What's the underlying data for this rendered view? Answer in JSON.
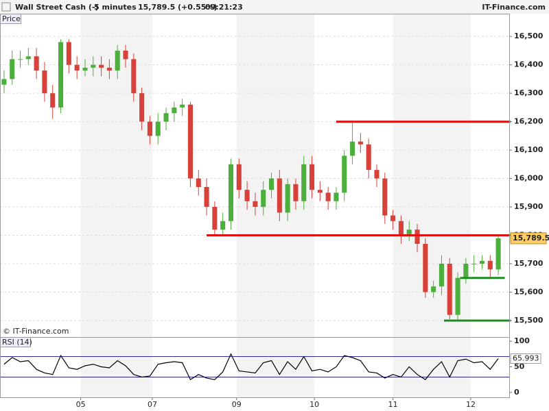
{
  "header": {
    "instrument": "Wall Street Cash (-)",
    "timeframe": "5 minutes",
    "price": "15,789.5",
    "change": "(+0.55%)",
    "time": "09:21:23",
    "brand": "IT-Finance.com"
  },
  "chart_data": [
    {
      "type": "candlestick",
      "panel_label": "Price",
      "watermark": "© IT-Finance.com",
      "up_color": "#4cae3c",
      "down_color": "#d8403a",
      "open": [
        16330,
        16350,
        16420,
        16420,
        16430,
        16380,
        16300,
        16250,
        16480,
        16400,
        16380,
        16390,
        16400,
        16390,
        16380,
        16450,
        16420,
        16300,
        16200,
        16150,
        16200,
        16230,
        16250,
        16260,
        16000,
        15970,
        15900,
        15820,
        15850,
        16050,
        15960,
        15920,
        15900,
        15960,
        16000,
        15880,
        15980,
        15920,
        16050,
        15960,
        15950,
        15920,
        15950,
        16080,
        16130,
        16120,
        16030,
        16000,
        15870,
        15850,
        15800,
        15820,
        15770,
        15600,
        15620,
        15700,
        15520,
        15650,
        15700,
        15700,
        15710,
        15680
      ],
      "high": [
        16380,
        16450,
        16450,
        16460,
        16460,
        16410,
        16330,
        16490,
        16490,
        16430,
        16420,
        16430,
        16430,
        16420,
        16470,
        16470,
        16440,
        16320,
        16220,
        16230,
        16250,
        16270,
        16280,
        16270,
        16030,
        16000,
        15920,
        15880,
        16070,
        16070,
        15990,
        15950,
        15990,
        16020,
        16030,
        16000,
        16000,
        16080,
        16080,
        15990,
        15970,
        15970,
        16100,
        16200,
        16160,
        16140,
        16050,
        16020,
        15890,
        15870,
        15850,
        15840,
        15790,
        15640,
        15730,
        15720,
        15670,
        15720,
        15730,
        15730,
        15730,
        15800
      ],
      "low": [
        16300,
        16330,
        16390,
        16400,
        16350,
        16270,
        16210,
        16230,
        16370,
        16350,
        16360,
        16360,
        16360,
        16350,
        16350,
        16390,
        16270,
        16170,
        16120,
        16120,
        16170,
        16200,
        16220,
        15970,
        15940,
        15870,
        15800,
        15800,
        15820,
        15930,
        15890,
        15870,
        15870,
        15930,
        15850,
        15850,
        15890,
        15890,
        15930,
        15920,
        15890,
        15890,
        15920,
        16050,
        16090,
        16000,
        15970,
        15840,
        15820,
        15770,
        15780,
        15740,
        15580,
        15580,
        15590,
        15505,
        15500,
        15630,
        15670,
        15680,
        15650,
        15660
      ],
      "close": [
        16350,
        16420,
        16420,
        16430,
        16380,
        16300,
        16250,
        16480,
        16400,
        16380,
        16390,
        16400,
        16390,
        16380,
        16450,
        16420,
        16300,
        16200,
        16150,
        16200,
        16230,
        16250,
        16260,
        16000,
        15970,
        15900,
        15820,
        15850,
        16050,
        15960,
        15920,
        15900,
        15960,
        16000,
        15880,
        15980,
        15920,
        16050,
        15960,
        15950,
        15920,
        15950,
        16080,
        16130,
        16120,
        16030,
        16000,
        15870,
        15850,
        15800,
        15820,
        15770,
        15600,
        15620,
        15700,
        15520,
        15650,
        15700,
        15700,
        15710,
        15680,
        15789.5
      ],
      "levels": [
        {
          "value": 16200,
          "color": "#e01010"
        },
        {
          "value": 15800,
          "color": "#e01010"
        },
        {
          "value": 15650,
          "color": "#1f8a1f"
        },
        {
          "value": 15500,
          "color": "#1f8a1f"
        }
      ],
      "ylim": [
        15442,
        16580
      ],
      "yticks": [
        {
          "value": 15500,
          "label": "15,500"
        },
        {
          "value": 15600,
          "label": "15,600"
        },
        {
          "value": 15700,
          "label": "15,700"
        },
        {
          "value": 15800,
          "label": "15,800"
        },
        {
          "value": 15900,
          "label": "15,900"
        },
        {
          "value": 16000,
          "label": "16,000"
        },
        {
          "value": 16100,
          "label": "16,100"
        },
        {
          "value": 16200,
          "label": "16,200"
        },
        {
          "value": 16300,
          "label": "16,300"
        },
        {
          "value": 16400,
          "label": "16,400"
        },
        {
          "value": 16500,
          "label": "16,500"
        }
      ],
      "xticks": [
        {
          "value": 9.46,
          "label": "05"
        },
        {
          "value": 18.3,
          "label": "07"
        },
        {
          "value": 28.7,
          "label": "09"
        },
        {
          "value": 38.3,
          "label": "10"
        },
        {
          "value": 48.0,
          "label": "11"
        },
        {
          "value": 57.6,
          "label": "12"
        }
      ]
    },
    {
      "type": "line",
      "panel_label": "RSI (14)",
      "color": "#000000",
      "level_color": "#2a2a9a",
      "values": [
        55,
        68,
        60,
        62,
        45,
        38,
        35,
        72,
        48,
        45,
        52,
        55,
        50,
        48,
        62,
        52,
        35,
        30,
        32,
        55,
        58,
        60,
        58,
        25,
        35,
        28,
        25,
        40,
        75,
        42,
        40,
        38,
        58,
        62,
        35,
        60,
        45,
        70,
        42,
        45,
        40,
        50,
        72,
        68,
        62,
        40,
        38,
        28,
        35,
        30,
        50,
        35,
        25,
        45,
        60,
        30,
        62,
        65,
        58,
        60,
        45,
        65.993
      ],
      "levels": [
        70,
        30
      ],
      "ylim": [
        -9.5,
        108.1
      ],
      "yticks": [
        0,
        50,
        100
      ]
    }
  ]
}
